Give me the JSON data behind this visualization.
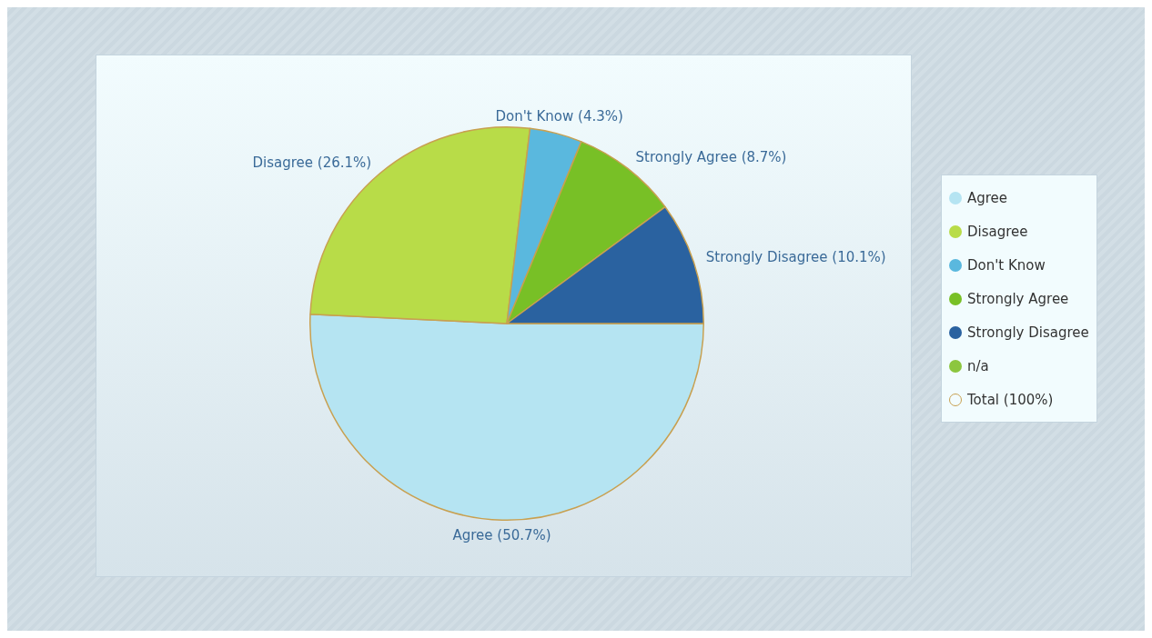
{
  "chart_data": {
    "type": "pie",
    "categories": [
      "Agree",
      "Disagree",
      "Don't Know",
      "Strongly Agree",
      "Strongly Disagree",
      "n/a"
    ],
    "values": [
      50.7,
      26.1,
      4.3,
      8.7,
      10.1,
      0
    ],
    "colors": [
      "#b5e4f2",
      "#b8dc48",
      "#5ab8de",
      "#78c026",
      "#2a62a0",
      "#8cc63f"
    ],
    "value_labels": [
      "Agree (50.7%)",
      "Disagree (26.1%)",
      "Don't Know (4.3%)",
      "Strongly Agree (8.7%)",
      "Strongly Disagree (10.1%)",
      null
    ],
    "legend": "right",
    "annotations": [
      "Total (100%)"
    ]
  }
}
